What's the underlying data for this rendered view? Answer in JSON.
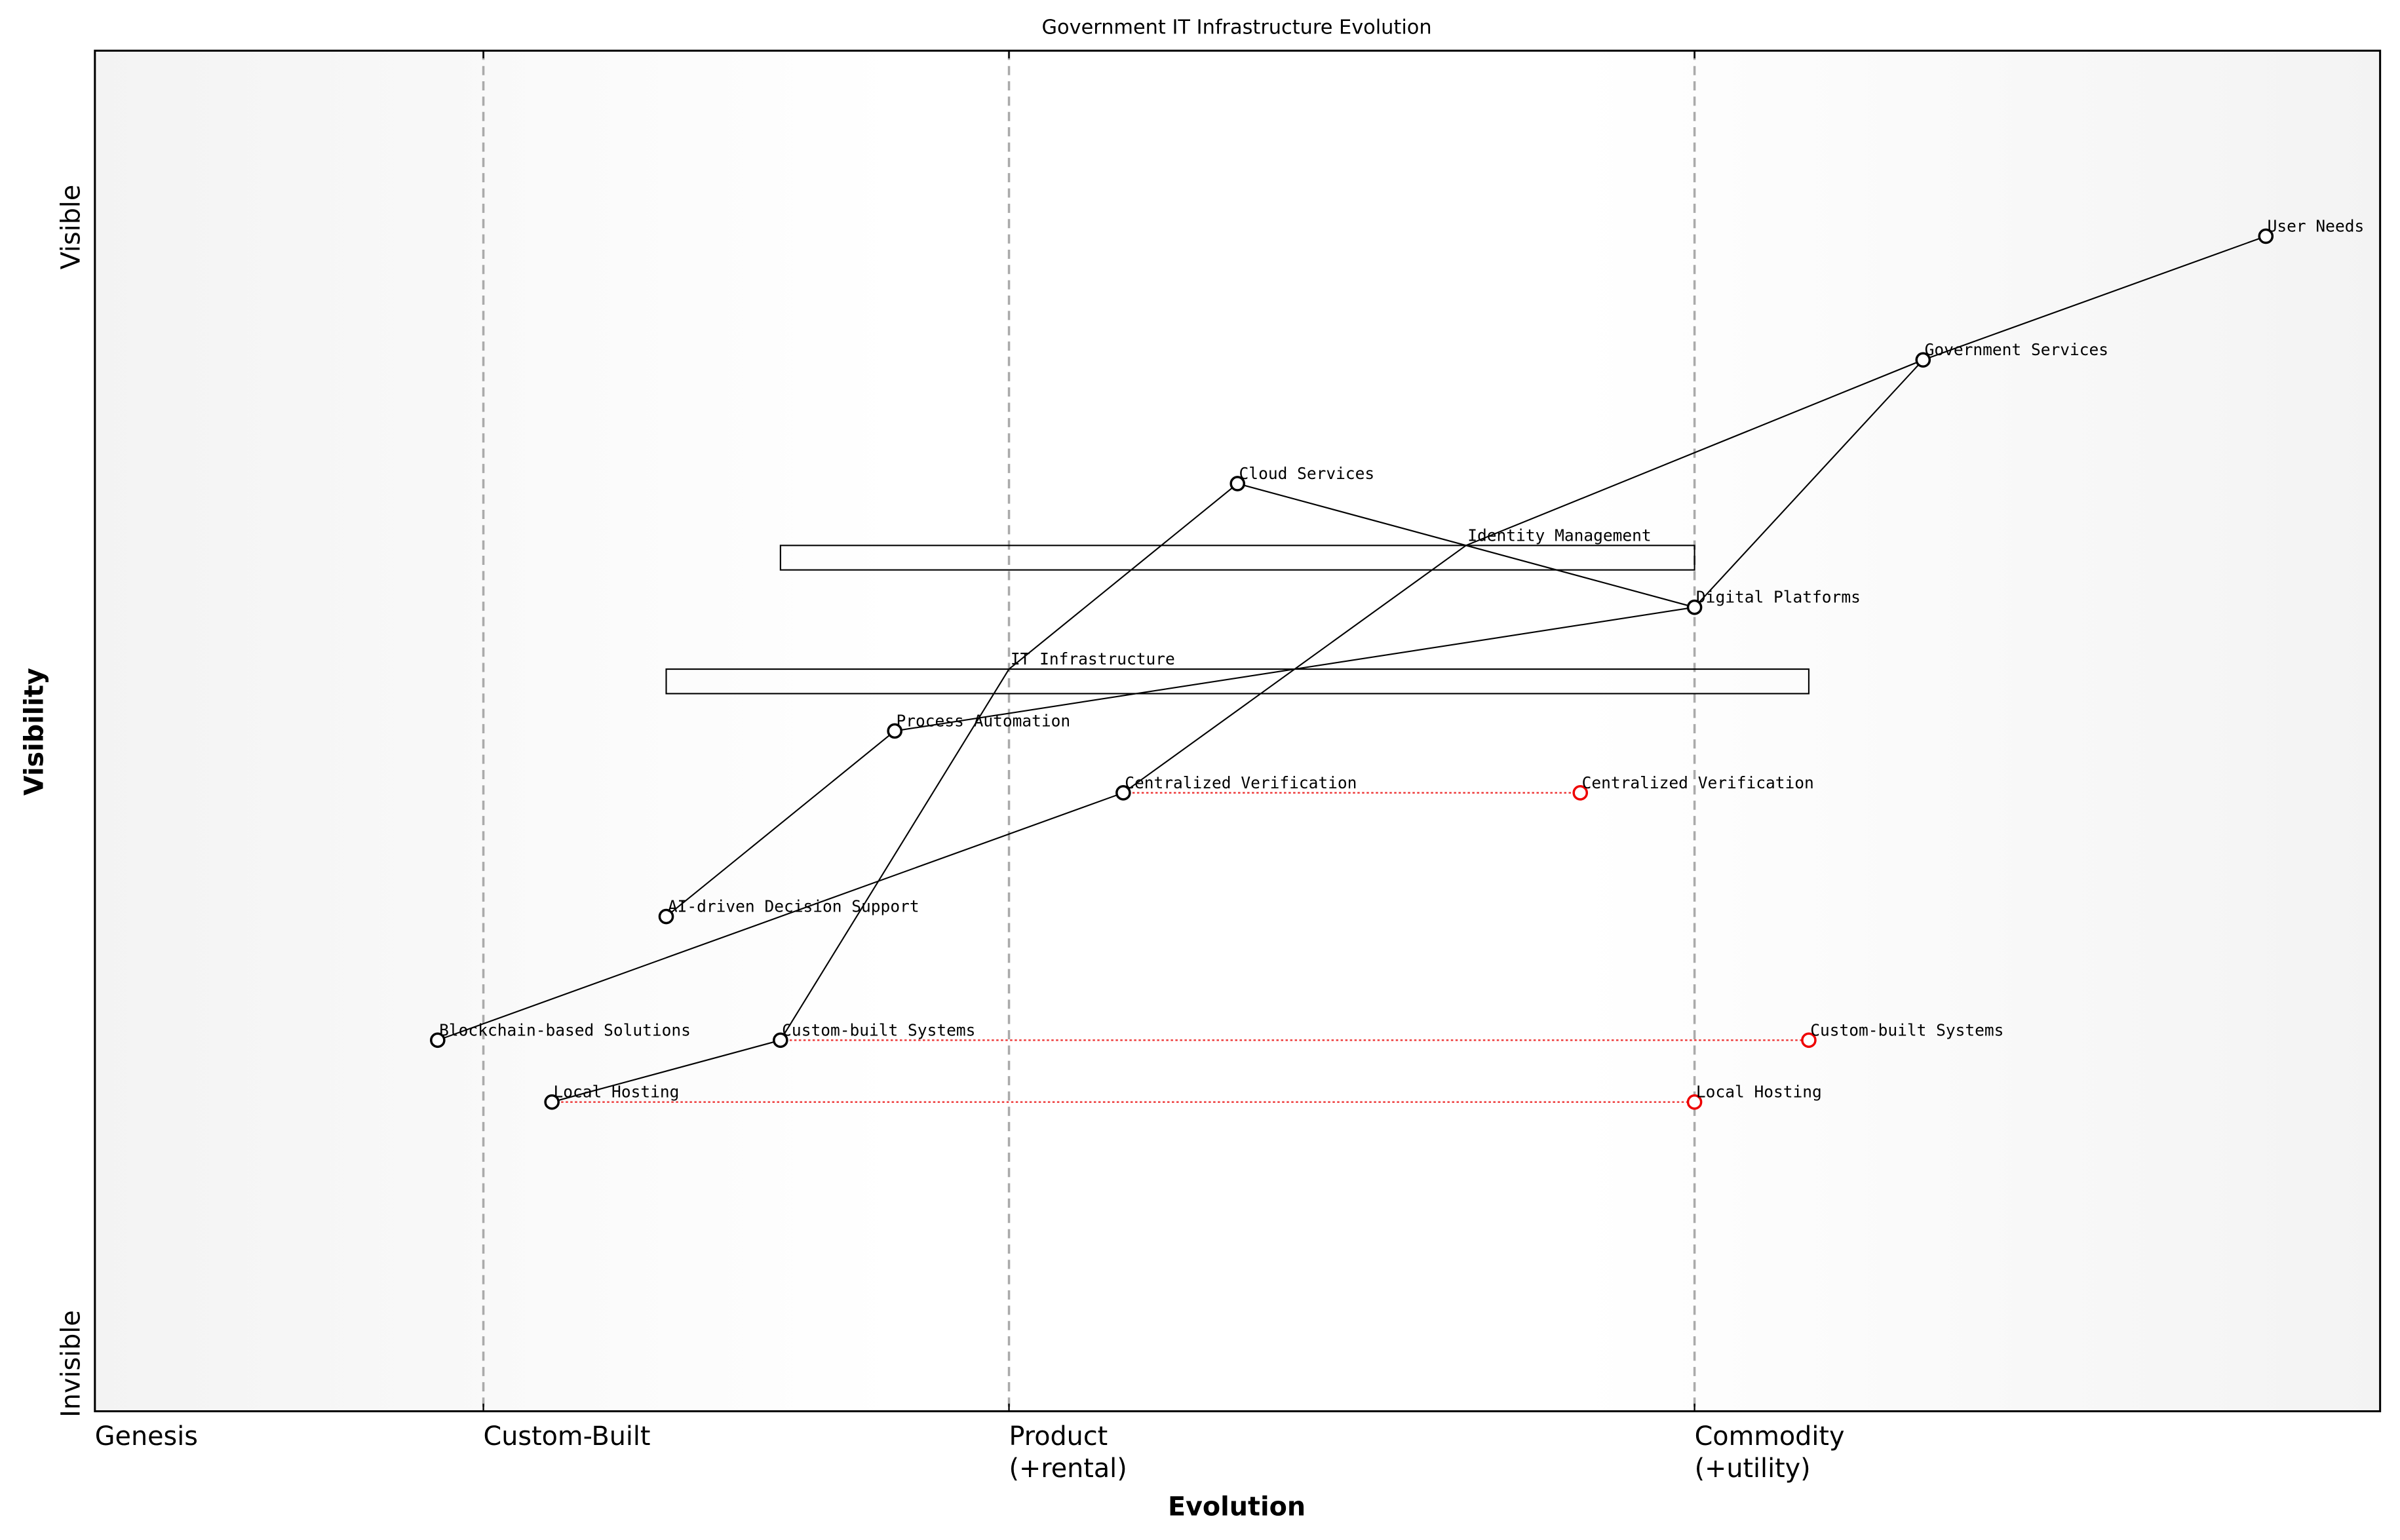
{
  "chart_data": {
    "type": "wardley",
    "title": "Government IT Infrastructure Evolution",
    "xlabel": "Evolution",
    "ylabel": "Visibility",
    "y_top_label": "Visible",
    "y_bottom_label": "Invisible",
    "xlim": [
      0,
      1
    ],
    "ylim": [
      0,
      1.1
    ],
    "stages": [
      {
        "value": 0,
        "lines": [
          "Genesis"
        ]
      },
      {
        "value": 0.17,
        "lines": [
          "Custom-Built"
        ]
      },
      {
        "value": 0.4,
        "lines": [
          "Product",
          "(+rental)"
        ]
      },
      {
        "value": 0.7,
        "lines": [
          "Commodity",
          "(+utility)"
        ]
      }
    ],
    "nodes": [
      {
        "name": "User Needs",
        "x": 0.95,
        "y": 0.95
      },
      {
        "name": "Government Services",
        "x": 0.8,
        "y": 0.85
      },
      {
        "name": "Cloud Services",
        "x": 0.5,
        "y": 0.75
      },
      {
        "name": "Identity Management",
        "x": 0.6,
        "y": 0.7,
        "pipeline": [
          0.3,
          0.7
        ]
      },
      {
        "name": "Digital Platforms",
        "x": 0.7,
        "y": 0.65
      },
      {
        "name": "IT Infrastructure",
        "x": 0.4,
        "y": 0.6,
        "pipeline": [
          0.25,
          0.75
        ]
      },
      {
        "name": "Process Automation",
        "x": 0.35,
        "y": 0.55
      },
      {
        "name": "Centralized Verification",
        "x": 0.45,
        "y": 0.5
      },
      {
        "name": "AI-driven Decision Support",
        "x": 0.25,
        "y": 0.4
      },
      {
        "name": "Blockchain-based Solutions",
        "x": 0.15,
        "y": 0.3
      },
      {
        "name": "Custom-built Systems",
        "x": 0.3,
        "y": 0.3
      },
      {
        "name": "Local Hosting",
        "x": 0.2,
        "y": 0.25
      }
    ],
    "links": [
      [
        "User Needs",
        "Government Services"
      ],
      [
        "Government Services",
        "Identity Management"
      ],
      [
        "Government Services",
        "Digital Platforms"
      ],
      [
        "Cloud Services",
        "Digital Platforms"
      ],
      [
        "Cloud Services",
        "IT Infrastructure"
      ],
      [
        "IT Infrastructure",
        "Custom-built Systems"
      ],
      [
        "Identity Management",
        "Centralized Verification"
      ],
      [
        "Digital Platforms",
        "Process Automation"
      ],
      [
        "Process Automation",
        "AI-driven Decision Support"
      ],
      [
        "Centralized Verification",
        "Blockchain-based Solutions"
      ],
      [
        "Custom-built Systems",
        "Local Hosting"
      ]
    ],
    "evolutions": [
      {
        "name": "Centralized Verification",
        "x": 0.65
      },
      {
        "name": "Custom-built Systems",
        "x": 0.75
      },
      {
        "name": "Local Hosting",
        "x": 0.7
      }
    ]
  }
}
